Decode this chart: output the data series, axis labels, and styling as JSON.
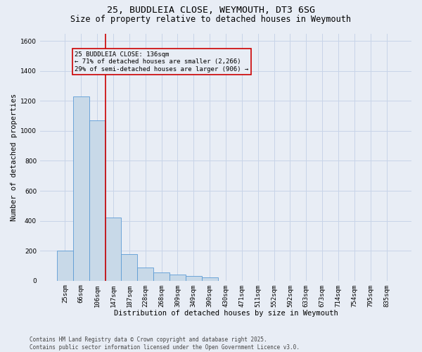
{
  "title_line1": "25, BUDDLEIA CLOSE, WEYMOUTH, DT3 6SG",
  "title_line2": "Size of property relative to detached houses in Weymouth",
  "xlabel": "Distribution of detached houses by size in Weymouth",
  "ylabel": "Number of detached properties",
  "categories": [
    "25sqm",
    "66sqm",
    "106sqm",
    "147sqm",
    "187sqm",
    "228sqm",
    "268sqm",
    "309sqm",
    "349sqm",
    "390sqm",
    "430sqm",
    "471sqm",
    "511sqm",
    "552sqm",
    "592sqm",
    "633sqm",
    "673sqm",
    "714sqm",
    "754sqm",
    "795sqm",
    "835sqm"
  ],
  "values": [
    200,
    1230,
    1070,
    420,
    175,
    90,
    55,
    40,
    30,
    20,
    0,
    0,
    0,
    0,
    0,
    0,
    0,
    0,
    0,
    0,
    0
  ],
  "bar_color": "#c8d9e8",
  "bar_edge_color": "#5b9bd5",
  "grid_color": "#c8d4e8",
  "bg_color": "#e8edf5",
  "annotation_box_text": "25 BUDDLEIA CLOSE: 136sqm\n← 71% of detached houses are smaller (2,266)\n29% of semi-detached houses are larger (906) →",
  "annotation_box_color": "#cc0000",
  "ylim": [
    0,
    1650
  ],
  "yticks": [
    0,
    200,
    400,
    600,
    800,
    1000,
    1200,
    1400,
    1600
  ],
  "footnote": "Contains HM Land Registry data © Crown copyright and database right 2025.\nContains public sector information licensed under the Open Government Licence v3.0.",
  "title_fontsize": 9.5,
  "subtitle_fontsize": 8.5,
  "label_fontsize": 7.5,
  "tick_fontsize": 6.5,
  "annotation_fontsize": 6.5,
  "footnote_fontsize": 5.5
}
